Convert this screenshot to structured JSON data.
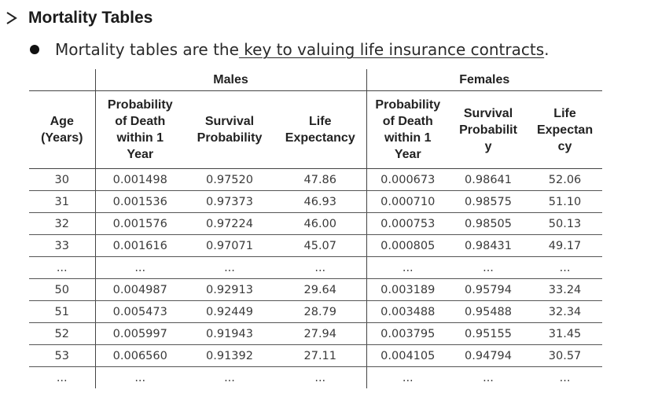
{
  "heading": {
    "icon": "arrowhead-bullet-icon",
    "title": "Mortality Tables"
  },
  "bullet": {
    "icon": "filled-circle-bullet-icon",
    "text_before": "Mortality tables are the",
    "link_text": " key to valuing life insurance contracts",
    "text_after": "."
  },
  "table": {
    "groups": {
      "males": "Males",
      "females": "Females"
    },
    "columns": {
      "age": [
        "Age",
        "(Years)"
      ],
      "male_prob_death": [
        "Probability",
        "of Death",
        "within 1",
        "Year"
      ],
      "male_survival": [
        "Survival",
        "Probability"
      ],
      "male_life_exp": [
        "Life",
        "Expectancy"
      ],
      "female_prob_death": [
        "Probability",
        "of Death",
        "within 1",
        "Year"
      ],
      "female_survival": [
        "Survival",
        "Probabilit",
        "y"
      ],
      "female_life_exp": [
        "Life",
        "Expectan",
        "cy"
      ]
    },
    "rows": [
      [
        "30",
        "0.001498",
        "0.97520",
        "47.86",
        "0.000673",
        "0.98641",
        "52.06"
      ],
      [
        "31",
        "0.001536",
        "0.97373",
        "46.93",
        "0.000710",
        "0.98575",
        "51.10"
      ],
      [
        "32",
        "0.001576",
        "0.97224",
        "46.00",
        "0.000753",
        "0.98505",
        "50.13"
      ],
      [
        "33",
        "0.001616",
        "0.97071",
        "45.07",
        "0.000805",
        "0.98431",
        "49.17"
      ],
      [
        "...",
        "...",
        "...",
        "...",
        "...",
        "...",
        "..."
      ],
      [
        "50",
        "0.004987",
        "0.92913",
        "29.64",
        "0.003189",
        "0.95794",
        "33.24"
      ],
      [
        "51",
        "0.005473",
        "0.92449",
        "28.79",
        "0.003488",
        "0.95488",
        "32.34"
      ],
      [
        "52",
        "0.005997",
        "0.91943",
        "27.94",
        "0.003795",
        "0.95155",
        "31.45"
      ],
      [
        "53",
        "0.006560",
        "0.91392",
        "27.11",
        "0.004105",
        "0.94794",
        "30.57"
      ],
      [
        "...",
        "...",
        "...",
        "...",
        "...",
        "...",
        "..."
      ]
    ]
  }
}
